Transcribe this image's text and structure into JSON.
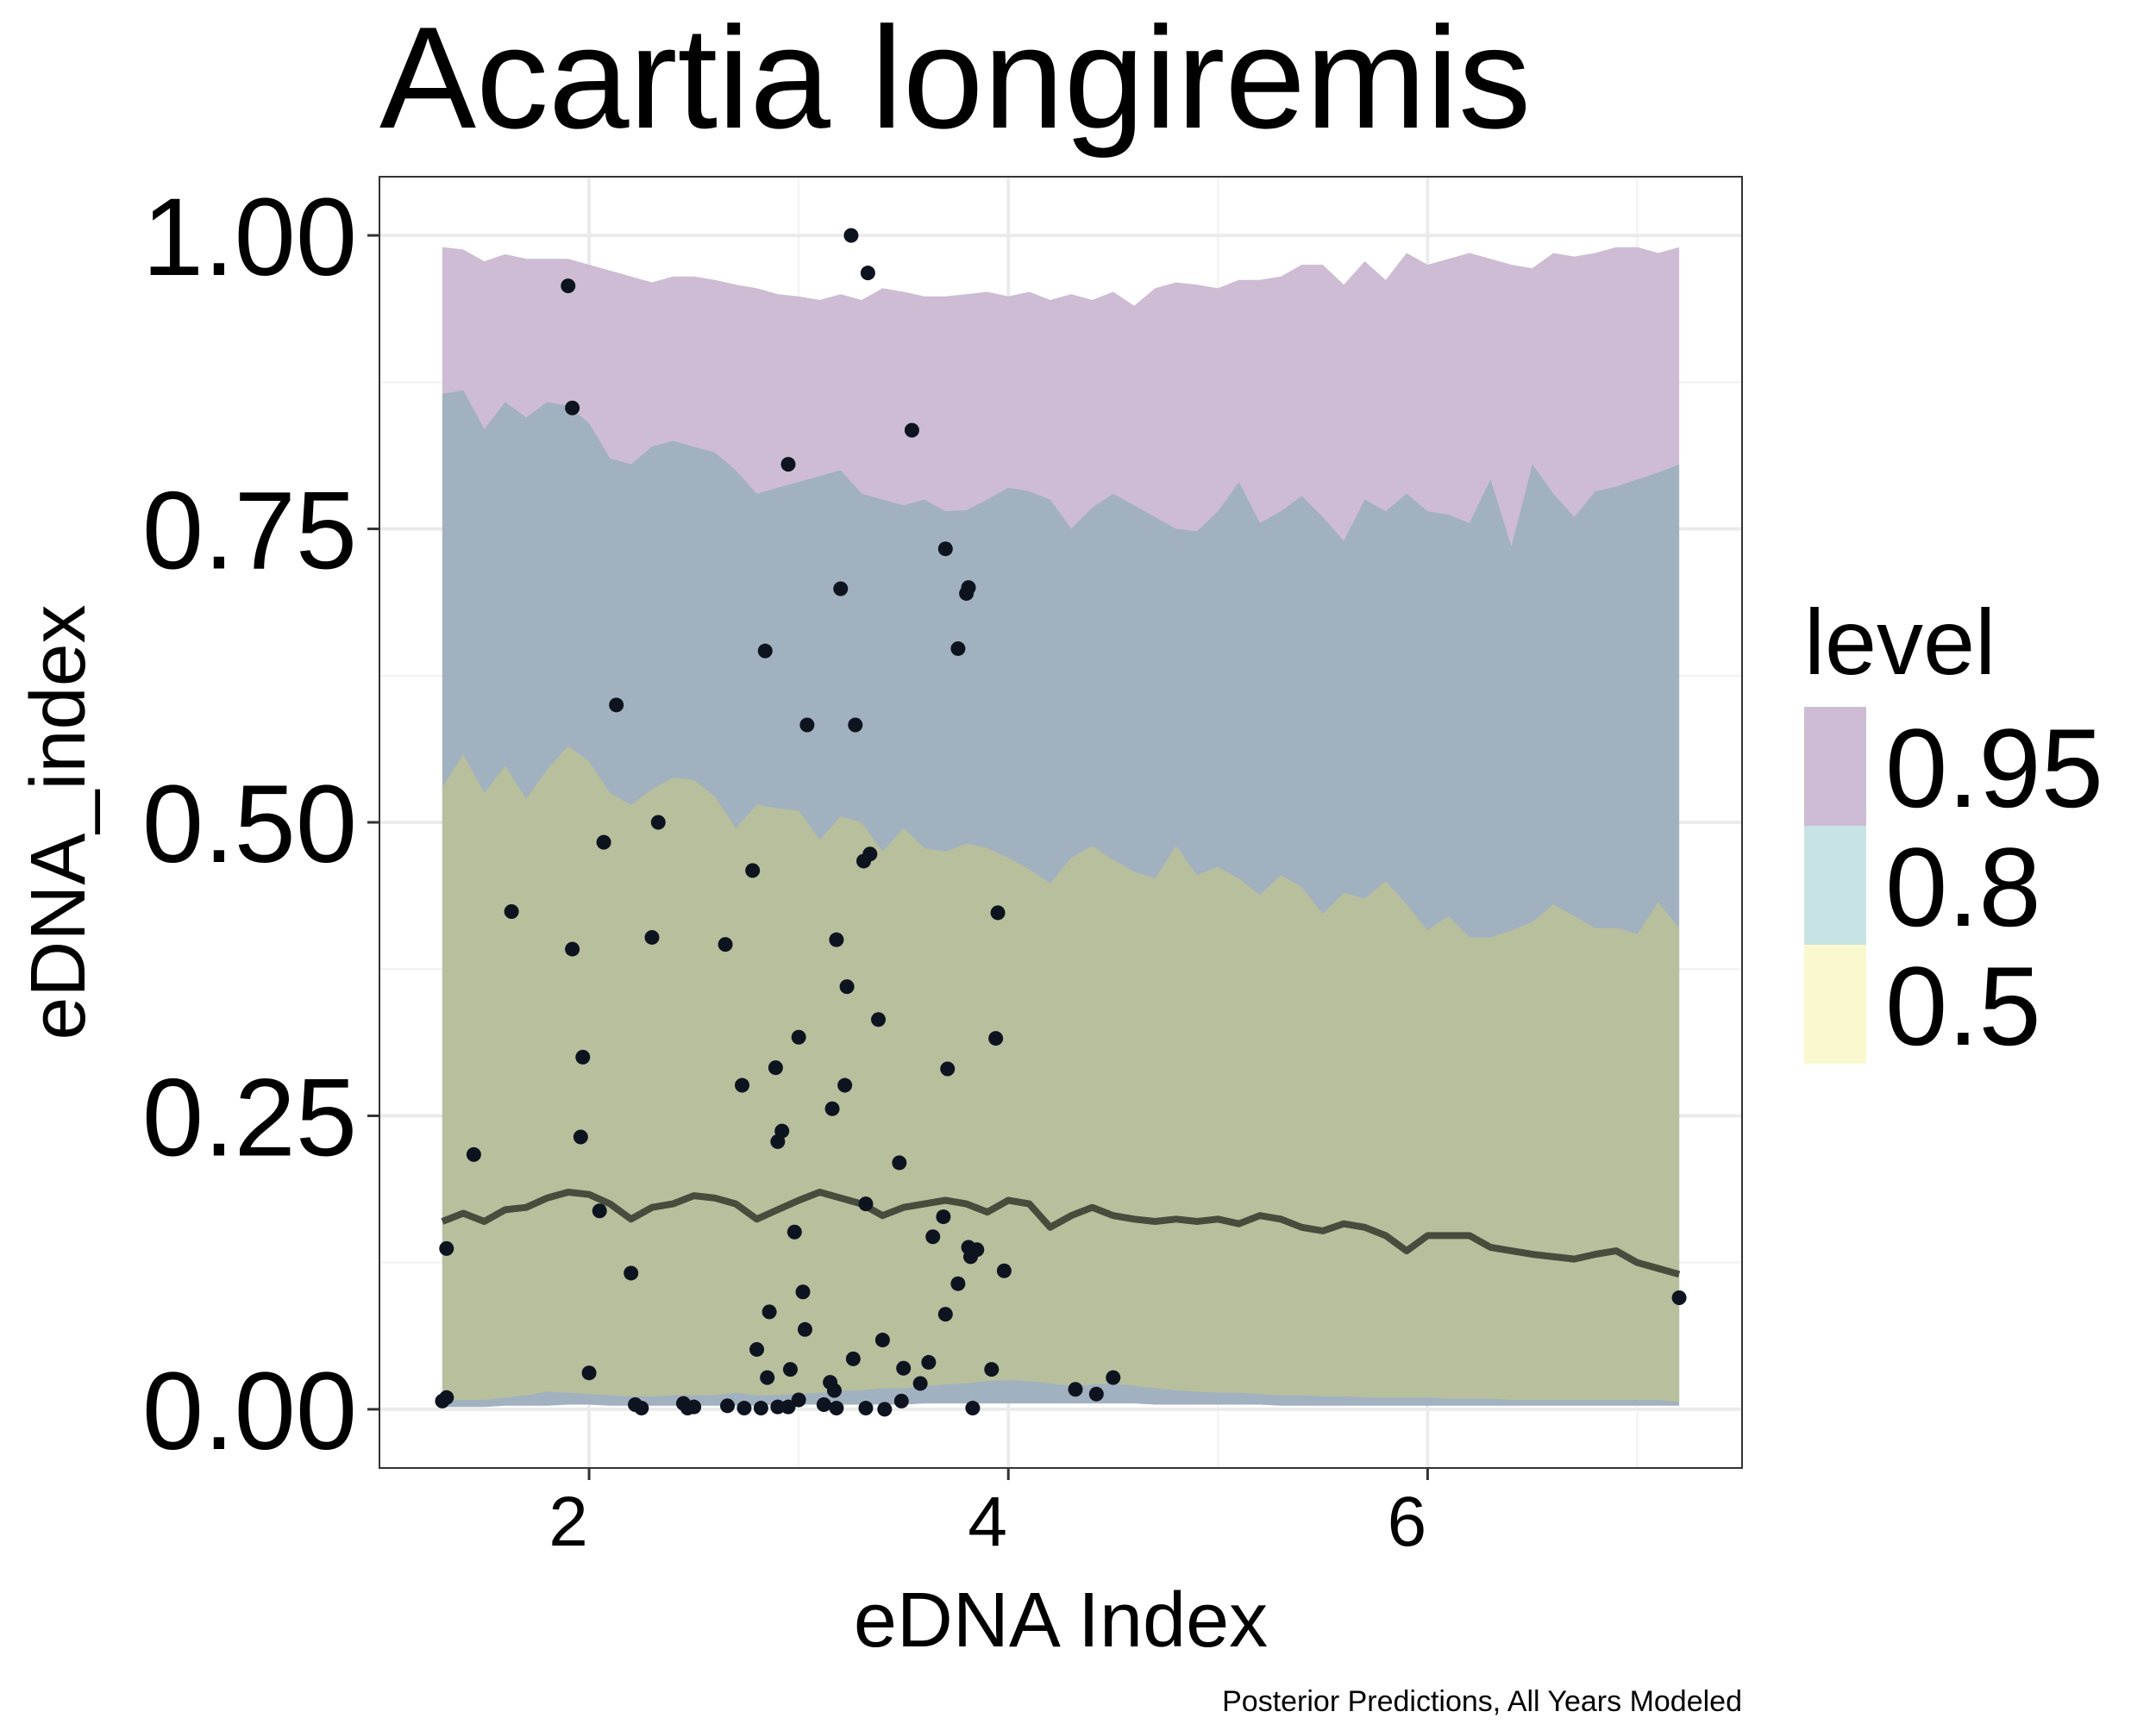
{
  "chart_data": {
    "type": "area",
    "title": "Acartia longiremis",
    "xlabel": "eDNA Index",
    "ylabel": "eDNA_index",
    "caption": "Posterior Predictions, All Years Modeled",
    "xlim": [
      1.0,
      7.5
    ],
    "ylim": [
      -0.05,
      1.05
    ],
    "x_ticks": [
      2,
      4,
      6
    ],
    "x_tick_labels": [
      "2",
      "4",
      "6"
    ],
    "y_ticks": [
      0,
      0.25,
      0.5,
      0.75,
      1.0
    ],
    "y_tick_labels": [
      "0.00",
      "0.25",
      "0.50",
      "0.75",
      "1.00"
    ],
    "grid": true,
    "legend": {
      "title": "level",
      "position": "right",
      "items": [
        {
          "label": "0.95",
          "color": "#cdbcd3"
        },
        {
          "label": "0.8",
          "color": "#c8e3e3"
        },
        {
          "label": "0.5",
          "color": "#faf8cf"
        }
      ]
    },
    "colors": {
      "band_95": "#cdbcd3",
      "band_80": "#a1b1c0",
      "band_50": "#b8bf9c",
      "median_line": "#474c3d",
      "points": "#0d1420"
    },
    "band_x": [
      1.3,
      1.4,
      1.5,
      1.6,
      1.7,
      1.8,
      1.9,
      2.0,
      2.1,
      2.2,
      2.3,
      2.4,
      2.5,
      2.6,
      2.7,
      2.8,
      2.9,
      3.0,
      3.1,
      3.2,
      3.3,
      3.4,
      3.5,
      3.6,
      3.7,
      3.8,
      3.9,
      4.0,
      4.1,
      4.2,
      4.3,
      4.4,
      4.5,
      4.6,
      4.7,
      4.8,
      4.9,
      5.0,
      5.1,
      5.2,
      5.3,
      5.4,
      5.5,
      5.6,
      5.7,
      5.8,
      5.9,
      6.0,
      6.1,
      6.2,
      6.3,
      6.4,
      6.5,
      6.6,
      6.7,
      6.8,
      6.9,
      7.0,
      7.1,
      7.2
    ],
    "series": [
      {
        "name": "0.95",
        "lower": [
          0.01,
          0.008,
          0.01,
          0.012,
          0.012,
          0.013,
          0.015,
          0.014,
          0.013,
          0.012,
          0.01,
          0.012,
          0.012,
          0.011,
          0.013,
          0.012,
          0.012,
          0.014,
          0.012,
          0.013,
          0.015,
          0.014,
          0.016,
          0.018,
          0.02,
          0.022,
          0.024,
          0.026,
          0.025,
          0.022,
          0.02,
          0.022,
          0.024,
          0.022,
          0.02,
          0.018,
          0.016,
          0.014,
          0.015,
          0.014,
          0.012,
          0.012,
          0.01,
          0.011,
          0.01,
          0.01,
          0.009,
          0.01,
          0.01,
          0.009,
          0.01,
          0.008,
          0.009,
          0.01,
          0.008,
          0.008,
          0.008,
          0.008,
          0.009,
          0.008
        ],
        "upper": [
          0.99,
          0.988,
          0.978,
          0.984,
          0.98,
          0.98,
          0.98,
          0.975,
          0.97,
          0.965,
          0.96,
          0.965,
          0.965,
          0.962,
          0.958,
          0.955,
          0.95,
          0.948,
          0.945,
          0.95,
          0.945,
          0.955,
          0.952,
          0.948,
          0.948,
          0.95,
          0.952,
          0.948,
          0.952,
          0.945,
          0.95,
          0.945,
          0.952,
          0.94,
          0.955,
          0.96,
          0.958,
          0.955,
          0.962,
          0.962,
          0.965,
          0.975,
          0.975,
          0.958,
          0.978,
          0.962,
          0.985,
          0.975,
          0.98,
          0.985,
          0.98,
          0.975,
          0.972,
          0.985,
          0.982,
          0.985,
          0.99,
          0.99,
          0.985,
          0.99
        ]
      },
      {
        "name": "0.8",
        "lower": [
          0.002,
          0.002,
          0.002,
          0.003,
          0.003,
          0.003,
          0.004,
          0.004,
          0.003,
          0.003,
          0.003,
          0.003,
          0.003,
          0.003,
          0.003,
          0.003,
          0.004,
          0.004,
          0.004,
          0.004,
          0.004,
          0.004,
          0.004,
          0.005,
          0.005,
          0.005,
          0.005,
          0.005,
          0.005,
          0.005,
          0.005,
          0.005,
          0.005,
          0.005,
          0.004,
          0.004,
          0.004,
          0.004,
          0.004,
          0.004,
          0.003,
          0.003,
          0.003,
          0.003,
          0.003,
          0.003,
          0.003,
          0.003,
          0.003,
          0.003,
          0.003,
          0.003,
          0.003,
          0.003,
          0.003,
          0.003,
          0.003,
          0.003,
          0.003,
          0.003
        ],
        "upper": [
          0.865,
          0.868,
          0.835,
          0.858,
          0.845,
          0.858,
          0.855,
          0.84,
          0.81,
          0.805,
          0.82,
          0.825,
          0.82,
          0.815,
          0.8,
          0.78,
          0.785,
          0.79,
          0.795,
          0.8,
          0.78,
          0.775,
          0.77,
          0.775,
          0.765,
          0.766,
          0.775,
          0.785,
          0.782,
          0.775,
          0.75,
          0.768,
          0.78,
          0.77,
          0.76,
          0.75,
          0.748,
          0.765,
          0.79,
          0.755,
          0.765,
          0.778,
          0.76,
          0.74,
          0.775,
          0.765,
          0.78,
          0.765,
          0.762,
          0.755,
          0.792,
          0.735,
          0.805,
          0.78,
          0.76,
          0.782,
          0.786,
          0.792,
          0.798,
          0.805
        ]
      },
      {
        "name": "0.5",
        "lower": [
          0.008,
          0.008,
          0.008,
          0.01,
          0.012,
          0.015,
          0.014,
          0.013,
          0.012,
          0.011,
          0.011,
          0.012,
          0.012,
          0.012,
          0.014,
          0.012,
          0.012,
          0.013,
          0.014,
          0.016,
          0.016,
          0.018,
          0.018,
          0.02,
          0.021,
          0.022,
          0.024,
          0.025,
          0.024,
          0.022,
          0.02,
          0.021,
          0.022,
          0.02,
          0.018,
          0.016,
          0.015,
          0.014,
          0.014,
          0.013,
          0.012,
          0.012,
          0.011,
          0.011,
          0.01,
          0.01,
          0.01,
          0.01,
          0.009,
          0.009,
          0.009,
          0.008,
          0.008,
          0.008,
          0.008,
          0.008,
          0.008,
          0.008,
          0.008,
          0.006
        ],
        "upper": [
          0.53,
          0.558,
          0.525,
          0.548,
          0.52,
          0.545,
          0.565,
          0.552,
          0.525,
          0.515,
          0.528,
          0.538,
          0.536,
          0.522,
          0.495,
          0.515,
          0.512,
          0.51,
          0.485,
          0.505,
          0.5,
          0.475,
          0.495,
          0.478,
          0.475,
          0.482,
          0.478,
          0.47,
          0.46,
          0.448,
          0.47,
          0.48,
          0.468,
          0.458,
          0.452,
          0.48,
          0.455,
          0.462,
          0.452,
          0.438,
          0.455,
          0.445,
          0.422,
          0.44,
          0.435,
          0.45,
          0.43,
          0.408,
          0.42,
          0.402,
          0.402,
          0.408,
          0.415,
          0.43,
          0.42,
          0.41,
          0.41,
          0.405,
          0.432,
          0.41
        ]
      }
    ],
    "median": [
      0.16,
      0.167,
      0.16,
      0.17,
      0.172,
      0.18,
      0.185,
      0.183,
      0.175,
      0.162,
      0.172,
      0.175,
      0.182,
      0.18,
      0.175,
      0.162,
      0.17,
      0.178,
      0.185,
      0.18,
      0.175,
      0.165,
      0.172,
      0.175,
      0.178,
      0.175,
      0.168,
      0.178,
      0.175,
      0.155,
      0.165,
      0.172,
      0.165,
      0.162,
      0.16,
      0.162,
      0.16,
      0.162,
      0.158,
      0.165,
      0.162,
      0.155,
      0.152,
      0.158,
      0.155,
      0.148,
      0.135,
      0.148,
      0.148,
      0.148,
      0.138,
      0.135,
      0.132,
      0.13,
      0.128,
      0.132,
      0.135,
      0.125,
      0.12,
      0.115
    ],
    "points": [
      {
        "x": 1.3,
        "y": 0.007
      },
      {
        "x": 1.32,
        "y": 0.137
      },
      {
        "x": 1.32,
        "y": 0.01
      },
      {
        "x": 1.45,
        "y": 0.217
      },
      {
        "x": 1.63,
        "y": 0.424
      },
      {
        "x": 1.9,
        "y": 0.957
      },
      {
        "x": 1.92,
        "y": 0.853
      },
      {
        "x": 1.92,
        "y": 0.392
      },
      {
        "x": 1.96,
        "y": 0.232
      },
      {
        "x": 1.97,
        "y": 0.3
      },
      {
        "x": 2.0,
        "y": 0.031
      },
      {
        "x": 2.05,
        "y": 0.169
      },
      {
        "x": 2.07,
        "y": 0.483
      },
      {
        "x": 2.13,
        "y": 0.6
      },
      {
        "x": 2.2,
        "y": 0.116
      },
      {
        "x": 2.22,
        "y": 0.004
      },
      {
        "x": 2.25,
        "y": 0.001
      },
      {
        "x": 2.3,
        "y": 0.402
      },
      {
        "x": 2.33,
        "y": 0.5
      },
      {
        "x": 2.45,
        "y": 0.005
      },
      {
        "x": 2.47,
        "y": 0.001
      },
      {
        "x": 2.5,
        "y": 0.002
      },
      {
        "x": 2.65,
        "y": 0.396
      },
      {
        "x": 2.66,
        "y": 0.003
      },
      {
        "x": 2.73,
        "y": 0.276
      },
      {
        "x": 2.74,
        "y": 0.001
      },
      {
        "x": 2.78,
        "y": 0.459
      },
      {
        "x": 2.8,
        "y": 0.051
      },
      {
        "x": 2.82,
        "y": 0.001
      },
      {
        "x": 2.84,
        "y": 0.646
      },
      {
        "x": 2.85,
        "y": 0.027
      },
      {
        "x": 2.86,
        "y": 0.083
      },
      {
        "x": 2.89,
        "y": 0.291
      },
      {
        "x": 2.9,
        "y": 0.228
      },
      {
        "x": 2.92,
        "y": 0.237
      },
      {
        "x": 2.9,
        "y": 0.002
      },
      {
        "x": 2.95,
        "y": 0.805
      },
      {
        "x": 2.95,
        "y": 0.002
      },
      {
        "x": 2.96,
        "y": 0.034
      },
      {
        "x": 2.98,
        "y": 0.151
      },
      {
        "x": 3.0,
        "y": 0.317
      },
      {
        "x": 3.0,
        "y": 0.008
      },
      {
        "x": 3.02,
        "y": 0.1
      },
      {
        "x": 3.03,
        "y": 0.068
      },
      {
        "x": 3.04,
        "y": 0.583
      },
      {
        "x": 3.12,
        "y": 0.004
      },
      {
        "x": 3.15,
        "y": 0.023
      },
      {
        "x": 3.16,
        "y": 0.256
      },
      {
        "x": 3.18,
        "y": 0.4
      },
      {
        "x": 3.17,
        "y": 0.016
      },
      {
        "x": 3.18,
        "y": 0.001
      },
      {
        "x": 3.2,
        "y": 0.699
      },
      {
        "x": 3.22,
        "y": 0.276
      },
      {
        "x": 3.23,
        "y": 0.36
      },
      {
        "x": 3.25,
        "y": 1.0
      },
      {
        "x": 3.26,
        "y": 0.043
      },
      {
        "x": 3.27,
        "y": 0.583
      },
      {
        "x": 3.32,
        "y": 0.175
      },
      {
        "x": 3.31,
        "y": 0.467
      },
      {
        "x": 3.33,
        "y": 0.968
      },
      {
        "x": 3.34,
        "y": 0.473
      },
      {
        "x": 3.32,
        "y": 0.001
      },
      {
        "x": 3.38,
        "y": 0.332
      },
      {
        "x": 3.4,
        "y": 0.059
      },
      {
        "x": 3.41,
        "y": 0.0
      },
      {
        "x": 3.48,
        "y": 0.21
      },
      {
        "x": 3.49,
        "y": 0.007
      },
      {
        "x": 3.5,
        "y": 0.035
      },
      {
        "x": 3.54,
        "y": 0.834
      },
      {
        "x": 3.58,
        "y": 0.022
      },
      {
        "x": 3.62,
        "y": 0.04
      },
      {
        "x": 3.64,
        "y": 0.147
      },
      {
        "x": 3.69,
        "y": 0.164
      },
      {
        "x": 3.7,
        "y": 0.733
      },
      {
        "x": 3.7,
        "y": 0.081
      },
      {
        "x": 3.71,
        "y": 0.29
      },
      {
        "x": 3.76,
        "y": 0.107
      },
      {
        "x": 3.76,
        "y": 0.648
      },
      {
        "x": 3.8,
        "y": 0.695
      },
      {
        "x": 3.81,
        "y": 0.7
      },
      {
        "x": 3.81,
        "y": 0.138
      },
      {
        "x": 3.82,
        "y": 0.13
      },
      {
        "x": 3.83,
        "y": 0.001
      },
      {
        "x": 3.85,
        "y": 0.136
      },
      {
        "x": 3.92,
        "y": 0.034
      },
      {
        "x": 3.94,
        "y": 0.316
      },
      {
        "x": 3.95,
        "y": 0.423
      },
      {
        "x": 3.98,
        "y": 0.118
      },
      {
        "x": 4.32,
        "y": 0.017
      },
      {
        "x": 4.42,
        "y": 0.013
      },
      {
        "x": 4.5,
        "y": 0.027
      },
      {
        "x": 7.2,
        "y": 0.095
      }
    ]
  }
}
